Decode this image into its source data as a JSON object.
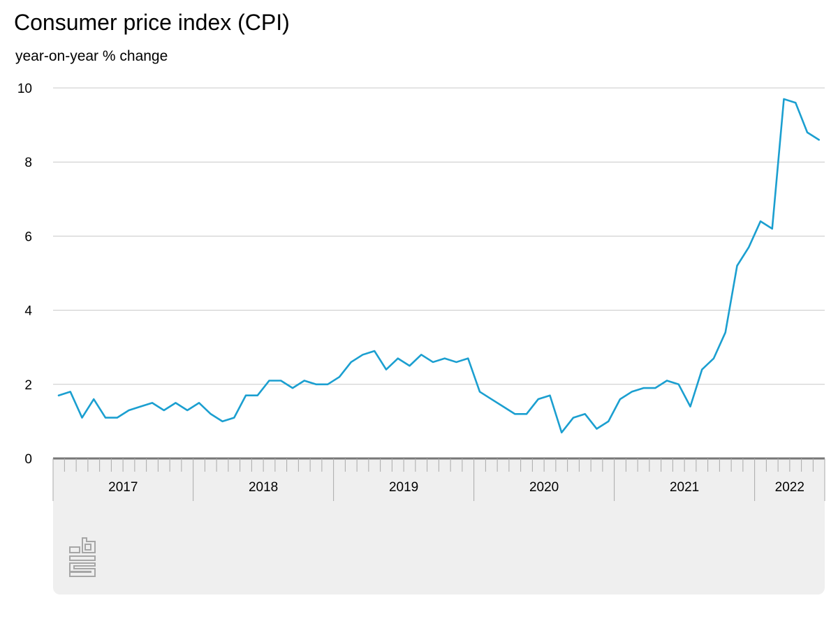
{
  "chart_data": {
    "type": "line",
    "title": "Consumer price index (CPI)",
    "ylabel": "year-on-year % change",
    "xlabel": "",
    "ylim": [
      0,
      10
    ],
    "yticks": [
      0,
      2,
      4,
      6,
      8,
      10
    ],
    "x_start": "2017-01",
    "x_end": "2022-06",
    "xtick_labels": [
      "2017",
      "2018",
      "2019",
      "2020",
      "2021",
      "2022"
    ],
    "grid": true,
    "series": [
      {
        "color": "#1b9fd0",
        "x": [
          "2017-01",
          "2017-02",
          "2017-03",
          "2017-04",
          "2017-05",
          "2017-06",
          "2017-07",
          "2017-08",
          "2017-09",
          "2017-10",
          "2017-11",
          "2017-12",
          "2018-01",
          "2018-02",
          "2018-03",
          "2018-04",
          "2018-05",
          "2018-06",
          "2018-07",
          "2018-08",
          "2018-09",
          "2018-10",
          "2018-11",
          "2018-12",
          "2019-01",
          "2019-02",
          "2019-03",
          "2019-04",
          "2019-05",
          "2019-06",
          "2019-07",
          "2019-08",
          "2019-09",
          "2019-10",
          "2019-11",
          "2019-12",
          "2020-01",
          "2020-02",
          "2020-03",
          "2020-04",
          "2020-05",
          "2020-06",
          "2020-07",
          "2020-08",
          "2020-09",
          "2020-10",
          "2020-11",
          "2020-12",
          "2021-01",
          "2021-02",
          "2021-03",
          "2021-04",
          "2021-05",
          "2021-06",
          "2021-07",
          "2021-08",
          "2021-09",
          "2021-10",
          "2021-11",
          "2021-12",
          "2022-01",
          "2022-02",
          "2022-03",
          "2022-04",
          "2022-05",
          "2022-06"
        ],
        "values": [
          1.7,
          1.8,
          1.1,
          1.6,
          1.1,
          1.1,
          1.3,
          1.4,
          1.5,
          1.3,
          1.5,
          1.3,
          1.5,
          1.2,
          1.0,
          1.1,
          1.7,
          1.7,
          2.1,
          2.1,
          1.9,
          2.1,
          2.0,
          2.0,
          2.2,
          2.6,
          2.8,
          2.9,
          2.4,
          2.7,
          2.5,
          2.8,
          2.6,
          2.7,
          2.6,
          2.7,
          1.8,
          1.6,
          1.4,
          1.2,
          1.2,
          1.6,
          1.7,
          0.7,
          1.1,
          1.2,
          0.8,
          1.0,
          1.6,
          1.8,
          1.9,
          1.9,
          2.1,
          2.0,
          1.4,
          2.4,
          2.7,
          3.4,
          5.2,
          5.7,
          6.4,
          6.2,
          9.7,
          9.6,
          8.8,
          8.6
        ]
      }
    ]
  },
  "logo_text": "cbs"
}
